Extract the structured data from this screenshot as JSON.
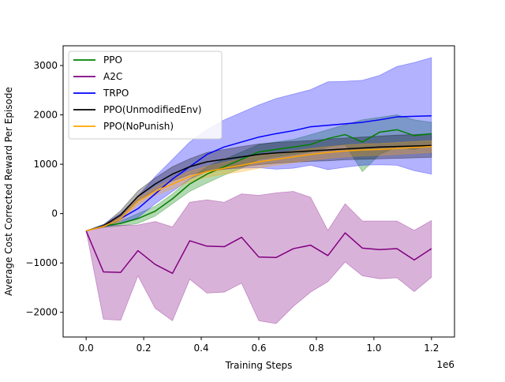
{
  "chart_data": {
    "type": "line",
    "title": "",
    "xlabel": "Training Steps",
    "ylabel": "Average Cost Corrected Reward Per Episode",
    "x_offset_label": "1e6",
    "xlim": [
      -80000,
      1280000
    ],
    "ylim": [
      -2500,
      3400
    ],
    "x_ticks": [
      0,
      200000,
      400000,
      600000,
      800000,
      1000000,
      1200000
    ],
    "x_tick_labels": [
      "0.0",
      "0.2",
      "0.4",
      "0.6",
      "0.8",
      "1.0",
      "1.2"
    ],
    "y_ticks": [
      -2000,
      -1000,
      0,
      1000,
      2000,
      3000
    ],
    "y_tick_labels": [
      "−2000",
      "−1000",
      "0",
      "1000",
      "2000",
      "3000"
    ],
    "grid": false,
    "legend_position": "top-left",
    "x": [
      0,
      60000,
      120000,
      180000,
      240000,
      300000,
      360000,
      420000,
      480000,
      540000,
      600000,
      660000,
      720000,
      780000,
      840000,
      900000,
      960000,
      1020000,
      1080000,
      1140000,
      1200000
    ],
    "series": [
      {
        "name": "PPO",
        "color": "#008000",
        "values": [
          -350,
          -250,
          -200,
          -100,
          50,
          300,
          600,
          800,
          950,
          1100,
          1250,
          1300,
          1350,
          1400,
          1520,
          1600,
          1450,
          1650,
          1700,
          1580,
          1620
        ],
        "lower": [
          -350,
          -280,
          -250,
          -200,
          -50,
          200,
          450,
          620,
          780,
          920,
          1100,
          1150,
          1200,
          1250,
          1350,
          1400,
          850,
          1200,
          1350,
          1300,
          1400
        ],
        "upper": [
          -350,
          -220,
          -150,
          0,
          150,
          400,
          700,
          950,
          1100,
          1250,
          1400,
          1450,
          1500,
          1600,
          1700,
          1800,
          1900,
          1950,
          2000,
          1900,
          1850
        ]
      },
      {
        "name": "A2C",
        "color": "#800080",
        "values": [
          -350,
          -1180,
          -1190,
          -750,
          -1030,
          -1210,
          -550,
          -660,
          -670,
          -480,
          -880,
          -890,
          -710,
          -640,
          -850,
          -390,
          -700,
          -730,
          -710,
          -940,
          -710
        ],
        "lower": [
          -350,
          -2140,
          -2160,
          -1260,
          -1920,
          -2170,
          -1330,
          -1610,
          -1590,
          -1410,
          -2170,
          -2230,
          -1880,
          -1590,
          -1380,
          -980,
          -1260,
          -1320,
          -1300,
          -1580,
          -1290
        ],
        "upper": [
          -350,
          -240,
          -240,
          -230,
          -160,
          -270,
          230,
          280,
          230,
          400,
          370,
          420,
          450,
          330,
          -340,
          200,
          -150,
          -150,
          -150,
          -340,
          -140
        ]
      },
      {
        "name": "TRPO",
        "color": "#0000ff",
        "values": [
          -350,
          -250,
          -100,
          100,
          400,
          700,
          950,
          1200,
          1350,
          1450,
          1550,
          1620,
          1680,
          1760,
          1790,
          1820,
          1850,
          1900,
          1960,
          1970,
          1980
        ],
        "lower": [
          -350,
          -280,
          -200,
          -80,
          200,
          450,
          700,
          850,
          900,
          920,
          930,
          900,
          920,
          980,
          890,
          940,
          980,
          990,
          980,
          870,
          800
        ],
        "upper": [
          -350,
          -220,
          0,
          350,
          750,
          1100,
          1450,
          1700,
          1900,
          2050,
          2200,
          2330,
          2420,
          2510,
          2670,
          2680,
          2700,
          2800,
          2980,
          3060,
          3160
        ]
      },
      {
        "name": "PPO(UnmodifiedEnv)",
        "color": "#000000",
        "values": [
          -350,
          -250,
          -30,
          350,
          600,
          800,
          950,
          1050,
          1100,
          1150,
          1200,
          1230,
          1250,
          1270,
          1290,
          1310,
          1330,
          1350,
          1360,
          1370,
          1380
        ],
        "lower": [
          -350,
          -270,
          -120,
          250,
          480,
          660,
          790,
          860,
          900,
          950,
          990,
          1020,
          1040,
          1060,
          1070,
          1090,
          1100,
          1110,
          1120,
          1130,
          1140
        ],
        "upper": [
          -350,
          -230,
          60,
          460,
          720,
          950,
          1110,
          1240,
          1300,
          1360,
          1410,
          1440,
          1460,
          1480,
          1510,
          1530,
          1550,
          1570,
          1590,
          1600,
          1620
        ]
      },
      {
        "name": "PPO(NoPunish)",
        "color": "#ffa500",
        "values": [
          -350,
          -260,
          -100,
          250,
          450,
          600,
          750,
          850,
          920,
          980,
          1050,
          1100,
          1150,
          1200,
          1240,
          1270,
          1290,
          1300,
          1320,
          1340,
          1360
        ],
        "lower": [
          -350,
          -280,
          -160,
          180,
          370,
          500,
          640,
          740,
          800,
          850,
          920,
          980,
          1030,
          1080,
          1120,
          1150,
          1170,
          1180,
          1200,
          1220,
          1240
        ],
        "upper": [
          -350,
          -240,
          -40,
          320,
          530,
          700,
          860,
          960,
          1040,
          1110,
          1180,
          1220,
          1270,
          1320,
          1360,
          1390,
          1410,
          1420,
          1440,
          1460,
          1480
        ]
      }
    ]
  }
}
